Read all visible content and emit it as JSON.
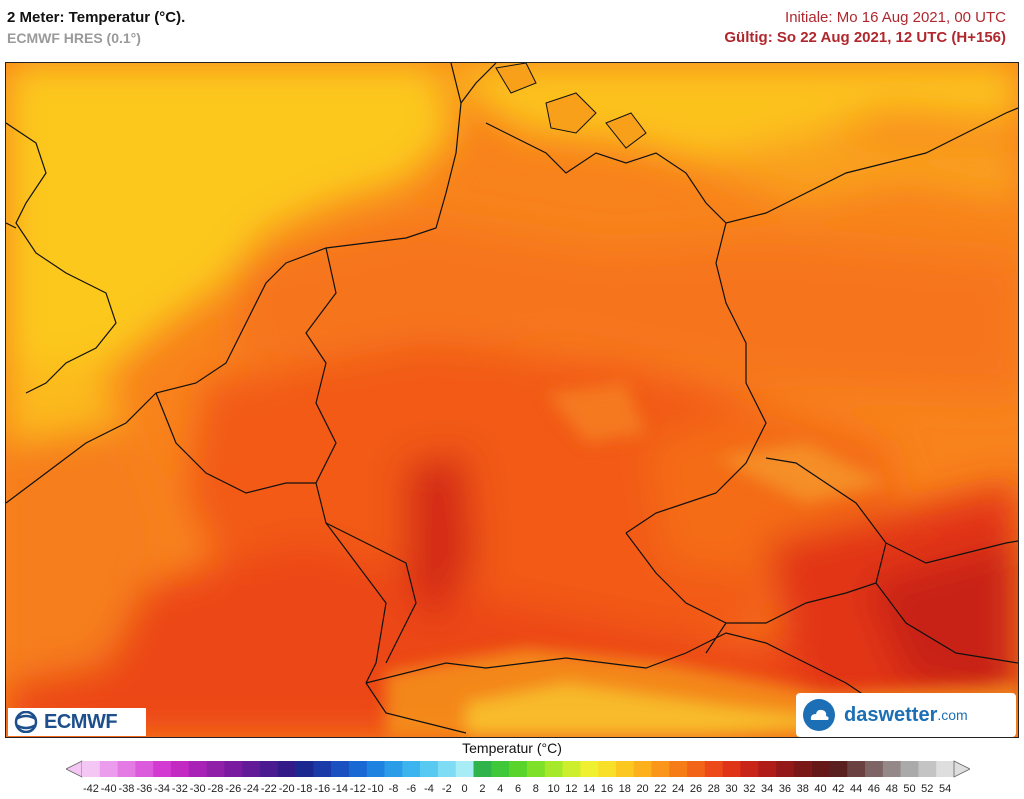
{
  "header": {
    "title": "2 Meter: Temperatur (°C).",
    "model": "ECMWF HRES (0.1°)",
    "init": "Initiale: Mo 16 Aug 2021, 00 UTC",
    "valid": "Gültig: So 22 Aug 2021, 12 UTC (H+156)"
  },
  "logos": {
    "left": "ECMWF",
    "right": "daswetter",
    "right_tld": ".com"
  },
  "legend": {
    "title": "Temperatur (°C)",
    "labels": [
      "-42",
      "-40",
      "-38",
      "-36",
      "-34",
      "-32",
      "-30",
      "-28",
      "-26",
      "-24",
      "-22",
      "-20",
      "-18",
      "-16",
      "-14",
      "-12",
      "-10",
      "-8",
      "-6",
      "-4",
      "-2",
      "0",
      "2",
      "4",
      "6",
      "8",
      "10",
      "12",
      "14",
      "16",
      "18",
      "20",
      "22",
      "24",
      "26",
      "28",
      "30",
      "32",
      "34",
      "36",
      "38",
      "40",
      "42",
      "44",
      "46",
      "48",
      "50",
      "52",
      "54"
    ],
    "colors": [
      "#f4c6f4",
      "#ec9cec",
      "#e47ae4",
      "#dc5adc",
      "#d23ad2",
      "#c22ac2",
      "#a822b8",
      "#9020a8",
      "#7a1aa0",
      "#621a98",
      "#4a1a90",
      "#321a88",
      "#1a2890",
      "#1a3aa8",
      "#1a50c0",
      "#1a68d4",
      "#1e82e0",
      "#2a9ce8",
      "#3cb4ee",
      "#58caf2",
      "#7edcf4",
      "#a8ecf6",
      "#2eb44a",
      "#3ec83a",
      "#5ad42a",
      "#7ee028",
      "#a6e82a",
      "#ccee2c",
      "#eef030",
      "#f8e028",
      "#fcc820",
      "#fcb01c",
      "#fa961a",
      "#f67c18",
      "#f26418",
      "#ec4a18",
      "#e03418",
      "#c82418",
      "#b01c18",
      "#941818",
      "#7a1818",
      "#661818",
      "#5a2020",
      "#6a4040",
      "#7e6464",
      "#948888",
      "#aaaaaa",
      "#c4c4c4",
      "#dedede"
    ]
  },
  "icons": {
    "ecmwf_logo": "ecmwf-swirl-icon",
    "daswetter_logo": "cloud-in-circle-icon",
    "legend_left_arrow": "triangle-left-icon",
    "legend_right_arrow": "triangle-right-icon"
  }
}
